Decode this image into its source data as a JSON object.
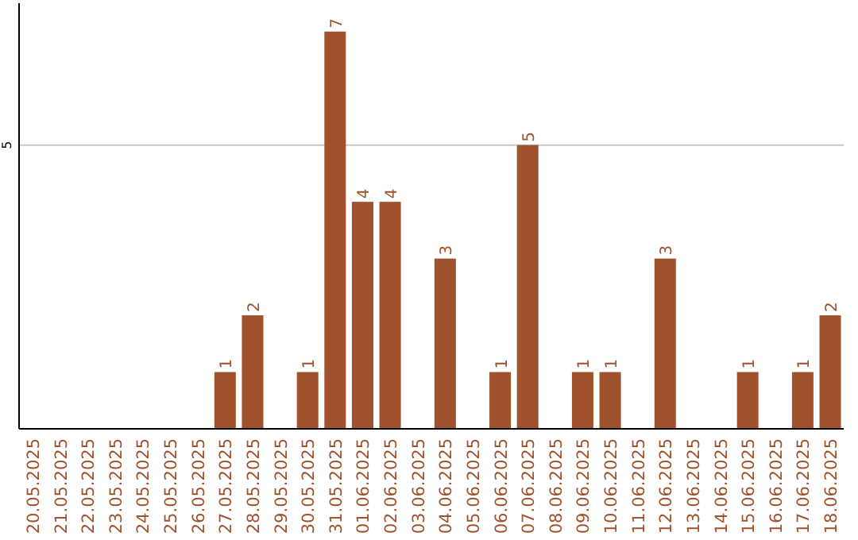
{
  "chart_data": {
    "type": "bar",
    "categories": [
      "20.05.2025",
      "21.05.2025",
      "22.05.2025",
      "23.05.2025",
      "24.05.2025",
      "25.05.2025",
      "26.05.2025",
      "27.05.2025",
      "28.05.2025",
      "29.05.2025",
      "30.05.2025",
      "31.05.2025",
      "01.06.2025",
      "02.06.2025",
      "03.06.2025",
      "04.06.2025",
      "05.06.2025",
      "06.06.2025",
      "07.06.2025",
      "08.06.2025",
      "09.06.2025",
      "10.06.2025",
      "11.06.2025",
      "12.06.2025",
      "13.06.2025",
      "14.06.2025",
      "15.06.2025",
      "16.06.2025",
      "17.06.2025",
      "18.06.2025"
    ],
    "values": [
      0,
      0,
      0,
      0,
      0,
      0,
      0,
      1,
      2,
      0,
      1,
      7,
      4,
      4,
      0,
      3,
      0,
      1,
      5,
      0,
      1,
      1,
      0,
      3,
      0,
      0,
      1,
      0,
      1,
      2
    ],
    "value_labels": [
      null,
      null,
      null,
      null,
      null,
      null,
      null,
      "1",
      "2",
      null,
      "1",
      "7",
      "4",
      "4",
      null,
      "3",
      null,
      "1",
      "5",
      null,
      "1",
      "1",
      null,
      "3",
      null,
      null,
      "1",
      null,
      "1",
      "2"
    ],
    "color": "#a0522d",
    "ylim": [
      0,
      7.5
    ],
    "yticks": [
      5
    ],
    "grid": "y"
  }
}
